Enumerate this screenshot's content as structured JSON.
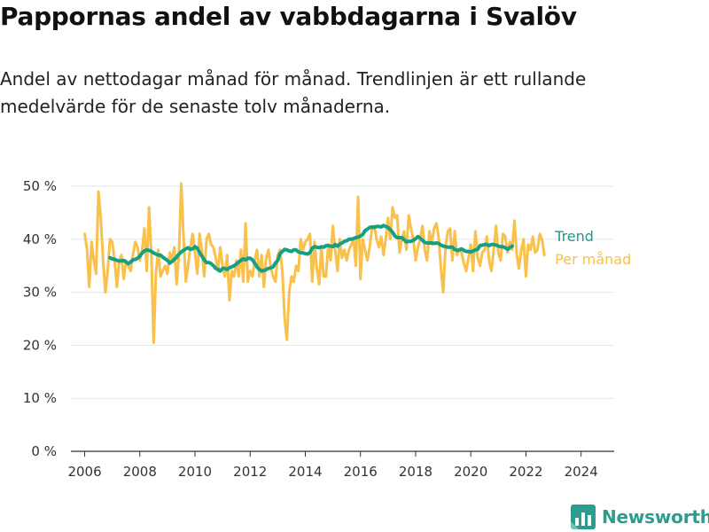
{
  "header": {
    "title": "Pappornas andel av vabbdagarna i Svalöv",
    "subtitle": "Andel av nettodagar månad för månad. Trendlinjen är ett rullande medelvärde för de senaste tolv månaderna."
  },
  "brand": {
    "name": "Newsworthy",
    "icon": "newsworthy-logo-icon",
    "color": "#2a9d8f"
  },
  "chart_data": {
    "type": "line",
    "title": "Pappornas andel av vabbdagarna i Svalöv",
    "ylim": [
      0,
      50
    ],
    "xlim": [
      2005.5,
      2025.2
    ],
    "x_ticks": [
      "2006",
      "2008",
      "2010",
      "2012",
      "2014",
      "2016",
      "2018",
      "2020",
      "2022",
      "2024"
    ],
    "y_ticks": [
      "0 %",
      "10 %",
      "20 %",
      "30 %",
      "40 %",
      "50 %"
    ],
    "grid": true,
    "legend": "right-inline",
    "series": [
      {
        "name": "Per månad",
        "color": "#f9c04a",
        "start": "2006-01",
        "frequency": "monthly",
        "values": [
          41.0,
          38.0,
          31.0,
          39.5,
          36.0,
          33.5,
          49.0,
          44.0,
          36.0,
          30.0,
          34.0,
          40.0,
          39.5,
          36.0,
          31.0,
          36.0,
          37.0,
          32.5,
          36.0,
          35.0,
          34.0,
          37.0,
          39.5,
          38.5,
          36.0,
          38.0,
          42.0,
          34.0,
          46.0,
          37.0,
          20.5,
          33.5,
          38.0,
          33.0,
          34.0,
          35.0,
          33.5,
          37.5,
          36.0,
          38.5,
          31.5,
          37.0,
          50.5,
          40.5,
          32.0,
          35.0,
          38.5,
          41.0,
          37.5,
          33.5,
          41.0,
          38.0,
          33.0,
          40.0,
          41.0,
          39.0,
          38.5,
          36.5,
          34.0,
          38.5,
          35.0,
          33.0,
          37.0,
          28.5,
          34.0,
          33.0,
          36.0,
          33.0,
          38.0,
          32.0,
          43.0,
          32.0,
          34.0,
          33.0,
          36.0,
          38.0,
          33.0,
          37.0,
          31.0,
          36.5,
          38.0,
          34.5,
          33.0,
          32.0,
          37.0,
          38.0,
          34.0,
          25.0,
          21.0,
          30.0,
          33.0,
          32.0,
          35.0,
          34.0,
          40.0,
          38.0,
          39.5,
          40.0,
          41.0,
          32.0,
          39.5,
          34.5,
          31.5,
          38.5,
          33.0,
          33.0,
          39.0,
          36.0,
          42.5,
          38.0,
          34.0,
          40.0,
          36.5,
          38.0,
          36.0,
          38.0,
          39.0,
          40.0,
          35.0,
          48.0,
          32.5,
          40.0,
          38.0,
          36.0,
          38.5,
          42.0,
          42.5,
          40.0,
          38.5,
          40.5,
          37.0,
          40.0,
          44.0,
          40.0,
          46.0,
          44.0,
          44.5,
          37.5,
          40.0,
          41.5,
          38.0,
          44.5,
          42.0,
          40.0,
          36.0,
          38.5,
          40.0,
          42.5,
          38.0,
          36.0,
          41.5,
          39.0,
          42.0,
          43.0,
          40.5,
          34.5,
          30.0,
          38.5,
          41.5,
          42.0,
          36.0,
          41.5,
          37.0,
          38.0,
          37.5,
          35.5,
          34.0,
          36.5,
          39.0,
          34.0,
          41.5,
          36.5,
          35.0,
          37.5,
          38.0,
          40.5,
          36.0,
          34.0,
          38.0,
          42.5,
          37.5,
          36.0,
          41.0,
          40.5,
          37.5,
          39.5,
          38.0,
          43.5,
          37.0,
          34.5,
          38.0,
          40.0,
          33.0,
          39.0,
          38.0,
          40.5,
          37.5,
          38.0,
          41.0,
          40.0,
          37.0
        ]
      },
      {
        "name": "Trend",
        "color": "#15a085",
        "start": "2006-12",
        "frequency": "monthly",
        "values": [
          36.5,
          36.3,
          36.2,
          36.0,
          35.9,
          35.9,
          36.0,
          35.7,
          35.4,
          35.7,
          36.1,
          36.2,
          36.4,
          36.8,
          37.4,
          37.8,
          38.0,
          37.9,
          37.7,
          37.4,
          37.2,
          37.0,
          37.0,
          36.6,
          36.3,
          36.0,
          35.5,
          35.8,
          36.2,
          36.6,
          37.2,
          37.6,
          37.9,
          38.2,
          38.4,
          38.1,
          38.2,
          38.6,
          38.3,
          37.5,
          36.8,
          36.1,
          35.6,
          35.6,
          35.4,
          35.0,
          34.5,
          34.3,
          34.0,
          34.5,
          34.5,
          34.3,
          34.6,
          34.8,
          35.0,
          35.3,
          35.7,
          36.0,
          36.3,
          36.1,
          36.4,
          36.4,
          36.1,
          35.5,
          34.8,
          34.3,
          34.0,
          34.1,
          34.3,
          34.5,
          34.6,
          34.8,
          35.5,
          36.0,
          37.3,
          37.7,
          38.1,
          38.0,
          37.8,
          37.7,
          38.0,
          38.0,
          37.6,
          37.5,
          37.4,
          37.3,
          37.2,
          37.5,
          38.3,
          38.6,
          38.5,
          38.4,
          38.6,
          38.5,
          38.8,
          38.8,
          38.7,
          38.6,
          39.0,
          38.7,
          39.1,
          39.3,
          39.6,
          39.7,
          40.0,
          40.0,
          40.1,
          40.3,
          40.4,
          40.6,
          40.9,
          41.6,
          41.9,
          42.2,
          42.3,
          42.2,
          42.4,
          42.4,
          42.3,
          42.6,
          42.4,
          42.2,
          41.8,
          41.3,
          40.6,
          40.3,
          40.3,
          40.3,
          39.9,
          39.5,
          39.6,
          39.6,
          39.8,
          40.1,
          40.5,
          40.2,
          39.8,
          39.4,
          39.3,
          39.3,
          39.3,
          39.2,
          39.3,
          39.2,
          38.9,
          38.7,
          38.6,
          38.5,
          38.5,
          38.5,
          38.1,
          37.9,
          38.0,
          38.2,
          37.9,
          37.7,
          37.7,
          37.6,
          37.8,
          38.0,
          38.1,
          38.8,
          38.9,
          39.0,
          39.0,
          38.8,
          39.0,
          39.0,
          38.9,
          38.7,
          38.6,
          38.6,
          38.4,
          38.1,
          38.4,
          38.7
        ]
      }
    ]
  }
}
